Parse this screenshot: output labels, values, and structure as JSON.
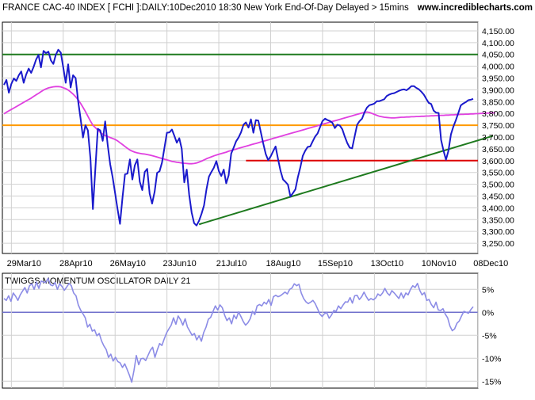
{
  "header": {
    "title": "FRANCE CAC-40 INDEX [ FCHI ]:DAILY:10Dec2010 18:30 New York End-Of-Day Delayed > 15mins",
    "site": "www.incrediblecharts.com"
  },
  "colors": {
    "price": "#1a1acc",
    "ma": "#e040e0",
    "resistance": "#1e7a1e",
    "support_orange": "#ff9900",
    "support_red": "#dd0000",
    "trendline": "#1e7a1e",
    "oscillator": "#8c8ce6",
    "zero_line": "#7070cc",
    "grid": "#d0d0d0"
  },
  "chart_data": [
    {
      "type": "line",
      "title": "FRANCE CAC-40 INDEX [ FCHI ]:DAILY:10Dec2010 18:30 New York End-Of-Day Delayed > 15mins",
      "x_tick_labels": [
        "29Mar10",
        "28Apr10",
        "26May10",
        "23Jun10",
        "21Jul10",
        "18Aug10",
        "15Sep10",
        "13Oct10",
        "10Nov10",
        "08Dec10"
      ],
      "y_tick_labels": [
        "4,150.00",
        "4,100.00",
        "4,050.00",
        "4,000.00",
        "3,950.00",
        "3,900.00",
        "3,850.00",
        "3,800.00",
        "3,750.00",
        "3,700.00",
        "3,650.00",
        "3,600.00",
        "3,550.00",
        "3,500.00",
        "3,450.00",
        "3,400.00",
        "3,350.00",
        "3,300.00",
        "3,250.00"
      ],
      "ylim": [
        3220,
        4170
      ],
      "grid": true,
      "series": [
        {
          "key": "price",
          "values": [
            3921,
            3942,
            3888,
            3925,
            3948,
            3938,
            3962,
            3978,
            3930,
            3965,
            3990,
            3972,
            3997,
            4028,
            4048,
            3995,
            4065,
            4056,
            4062,
            4025,
            4010,
            4048,
            4070,
            4058,
            3995,
            3930,
            4008,
            3910,
            3962,
            3950,
            3854,
            3780,
            3698,
            3750,
            3728,
            3610,
            3395,
            3565,
            3735,
            3728,
            3684,
            3766,
            3666,
            3585,
            3530,
            3463,
            3395,
            3332,
            3445,
            3542,
            3545,
            3605,
            3520,
            3580,
            3605,
            3510,
            3475,
            3552,
            3565,
            3460,
            3418,
            3468,
            3548,
            3555,
            3592,
            3655,
            3718,
            3720,
            3732,
            3705,
            3676,
            3695,
            3650,
            3508,
            3562,
            3455,
            3380,
            3335,
            3325,
            3345,
            3375,
            3410,
            3478,
            3532,
            3552,
            3570,
            3598,
            3556,
            3535,
            3562,
            3504,
            3538,
            3630,
            3655,
            3682,
            3698,
            3720,
            3752,
            3762,
            3740,
            3775,
            3718,
            3772,
            3770,
            3722,
            3672,
            3628,
            3602,
            3618,
            3640,
            3660,
            3605,
            3556,
            3520,
            3510,
            3498,
            3448,
            3462,
            3478,
            3530,
            3571,
            3620,
            3642,
            3658,
            3660,
            3682,
            3702,
            3715,
            3742,
            3768,
            3778,
            3772,
            3768,
            3760,
            3738,
            3752,
            3749,
            3733,
            3702,
            3675,
            3655,
            3652,
            3702,
            3752,
            3768,
            3778,
            3805,
            3825,
            3835,
            3838,
            3842,
            3852,
            3852,
            3856,
            3860,
            3874,
            3880,
            3884,
            3886,
            3891,
            3896,
            3900,
            3902,
            3898,
            3906,
            3916,
            3916,
            3908,
            3902,
            3892,
            3880,
            3862,
            3845,
            3840,
            3812,
            3803,
            3802,
            3688,
            3642,
            3604,
            3642,
            3712,
            3745,
            3772,
            3802,
            3834,
            3842,
            3848,
            3856,
            3858,
            3862
          ]
        },
        {
          "key": "ma",
          "values": [
            3798,
            3805,
            3811,
            3817,
            3823,
            3829,
            3835,
            3841,
            3847,
            3853,
            3859,
            3865,
            3872,
            3879,
            3885,
            3892,
            3899,
            3904,
            3908,
            3911,
            3913,
            3914,
            3914,
            3913,
            3909,
            3905,
            3899,
            3891,
            3882,
            3871,
            3858,
            3843,
            3826,
            3808,
            3788,
            3768,
            3750,
            3740,
            3730,
            3720,
            3712,
            3706,
            3702,
            3698,
            3694,
            3690,
            3684,
            3676,
            3668,
            3660,
            3652,
            3645,
            3640,
            3636,
            3633,
            3631,
            3629,
            3628,
            3626,
            3624,
            3621,
            3618,
            3615,
            3612,
            3609,
            3606,
            3603,
            3600,
            3597,
            3595,
            3593,
            3592,
            3590,
            3589,
            3588,
            3587,
            3587,
            3588,
            3590,
            3594,
            3598,
            3603,
            3608,
            3612,
            3616,
            3620,
            3624,
            3627,
            3630,
            3633,
            3636,
            3640,
            3643,
            3646,
            3649,
            3652,
            3655,
            3658,
            3661,
            3664,
            3667,
            3670,
            3673,
            3676,
            3679,
            3682,
            3685,
            3688,
            3691,
            3694,
            3697,
            3700,
            3703,
            3706,
            3709,
            3712,
            3715,
            3718,
            3721,
            3724,
            3727,
            3730,
            3733,
            3736,
            3739,
            3742,
            3745,
            3748,
            3751,
            3754,
            3757,
            3760,
            3763,
            3766,
            3769,
            3772,
            3775,
            3778,
            3781,
            3784,
            3787,
            3790,
            3793,
            3796,
            3799,
            3802,
            3804,
            3806,
            3804,
            3800,
            3796,
            3792,
            3788,
            3786,
            3784,
            3783,
            3782,
            3781,
            3781,
            3782,
            3783,
            3784,
            3784,
            3785,
            3785,
            3786,
            3786,
            3787,
            3787,
            3788,
            3788,
            3789,
            3789,
            3790,
            3790,
            3791,
            3791,
            3792,
            3792,
            3793,
            3793,
            3794,
            3794,
            3795,
            3795,
            3796,
            3796,
            3797,
            3797,
            3798,
            3798,
            3799,
            3799,
            3800,
            3800,
            3801,
            3801,
            3802,
            3802,
            3803
          ]
        }
      ],
      "horizontal_lines": [
        {
          "key": "resistance",
          "value": 4050
        },
        {
          "key": "support_orange",
          "value": 3750
        },
        {
          "key": "support_red",
          "value": 3600,
          "from_index": 98
        }
      ],
      "trendline": {
        "from_index": 79,
        "from_value": 3330,
        "to_index": 198,
        "to_value": 3705
      }
    },
    {
      "type": "line",
      "title": "TWIGGS MOMENTUM OSCILLATOR DAILY 21",
      "y_tick_labels": [
        "5%",
        "0%",
        "-5%",
        "-10%",
        "-15%"
      ],
      "ylim": [
        -16.5,
        8.5
      ],
      "grid": true,
      "values": [
        3.0,
        2.6,
        3.6,
        2.4,
        4.2,
        3.5,
        2.6,
        3.8,
        4.6,
        5.4,
        4.2,
        5.8,
        6.2,
        5.0,
        6.6,
        5.2,
        6.8,
        6.6,
        6.5,
        7.4,
        6.0,
        5.8,
        6.5,
        5.0,
        6.2,
        5.6,
        4.8,
        5.5,
        6.3,
        5.8,
        4.2,
        3.6,
        1.6,
        0.5,
        -0.3,
        -1.2,
        -3.2,
        -2.6,
        -4.1,
        -3.8,
        -5.1,
        -4.6,
        -6.2,
        -7.3,
        -8.1,
        -9.8,
        -9.1,
        -10.6,
        -9.8,
        -10.7,
        -11.0,
        -12.0,
        -11.2,
        -12.4,
        -13.7,
        -15.2,
        -12.6,
        -9.4,
        -11.4,
        -10.1,
        -10.0,
        -10.5,
        -9.4,
        -8.3,
        -7.6,
        -9.8,
        -8.2,
        -6.8,
        -7.2,
        -5.8,
        -4.5,
        -3.6,
        -2.8,
        -1.2,
        -2.6,
        -0.8,
        -1.6,
        -2.8,
        -1.4,
        -3.2,
        -4.1,
        -5.0,
        -4.6,
        -6.0,
        -5.1,
        -6.3,
        -4.4,
        -3.2,
        -1.5,
        -1.1,
        0.2,
        1.4,
        0.5,
        1.6,
        1.0,
        -0.6,
        -1.8,
        -1.2,
        -2.5,
        -0.6,
        -1.4,
        0.1,
        -0.9,
        -2.0,
        -2.8,
        -2.3,
        -1.4,
        0.2,
        -0.5,
        1.4,
        1.7,
        1.4,
        2.2,
        1.8,
        2.8,
        1.5,
        3.4,
        3.7,
        3.4,
        3.6,
        4.0,
        4.4,
        4.0,
        5.0,
        5.3,
        6.2,
        5.8,
        6.1,
        4.2,
        3.0,
        2.3,
        1.9,
        2.2,
        2.6,
        1.9,
        0.8,
        -0.4,
        -0.9,
        -0.3,
        -0.1,
        -1.3,
        -0.6,
        0.4,
        0.2,
        1.4,
        0.8,
        1.6,
        2.3,
        2.2,
        3.2,
        2.0,
        3.6,
        3.7,
        2.8,
        3.4,
        4.4,
        3.4,
        2.6,
        3.0,
        2.7,
        3.1,
        4.0,
        3.6,
        4.2,
        5.2,
        4.2,
        3.7,
        4.7,
        4.2,
        3.6,
        3.0,
        4.2,
        3.1,
        4.2,
        3.8,
        5.0,
        5.8,
        5.4,
        6.3,
        4.8,
        3.8,
        4.3,
        2.6,
        2.8,
        1.7,
        1.0,
        2.2,
        0.5,
        0.4,
        0.8,
        -0.4,
        -1.2,
        -3.0,
        -4.0,
        -3.6,
        -2.4,
        -1.9,
        -0.8,
        0.2,
        0.0,
        -0.2,
        0.6,
        1.2
      ]
    }
  ]
}
